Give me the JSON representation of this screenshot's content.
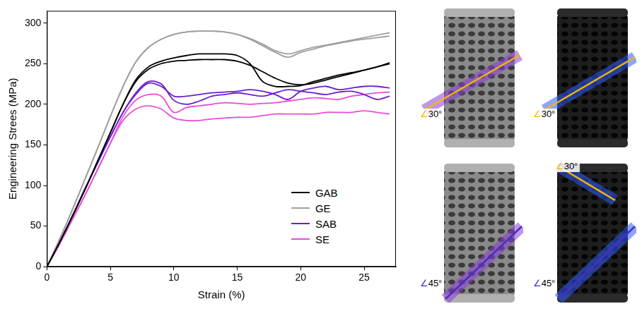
{
  "chart_data": {
    "type": "line",
    "x_label": "Strain (%)",
    "y_label": "Engineering Strees (MPa)",
    "x": [
      0,
      1,
      2,
      3,
      4,
      5,
      6,
      7,
      8,
      9,
      10,
      11,
      12,
      13,
      14,
      15,
      16,
      17,
      18,
      19,
      20,
      21,
      22,
      23,
      24,
      25,
      26,
      27
    ],
    "series": [
      {
        "name": "GAB",
        "color": "#000000",
        "values": [
          0,
          30,
          62,
          95,
          130,
          165,
          200,
          230,
          246,
          253,
          257,
          260,
          262,
          262,
          262,
          260,
          250,
          228,
          222,
          222,
          223,
          228,
          232,
          236,
          239,
          242,
          246,
          250
        ]
      },
      {
        "name": "GAB",
        "color": "#000000",
        "values": [
          0,
          30,
          62,
          95,
          130,
          165,
          200,
          228,
          243,
          250,
          253,
          254,
          255,
          255,
          255,
          253,
          248,
          240,
          232,
          226,
          224,
          226,
          230,
          234,
          238,
          242,
          246,
          251
        ]
      },
      {
        "name": "GE",
        "color": "#a0a0a0",
        "values": [
          0,
          34,
          70,
          108,
          146,
          185,
          222,
          252,
          270,
          280,
          286,
          289,
          290,
          290,
          289,
          286,
          281,
          274,
          266,
          262,
          266,
          270,
          273,
          276,
          279,
          282,
          285,
          288
        ]
      },
      {
        "name": "GE",
        "color": "#a0a0a0",
        "values": [
          0,
          34,
          70,
          108,
          146,
          185,
          222,
          252,
          270,
          280,
          286,
          289,
          290,
          290,
          289,
          286,
          280,
          272,
          264,
          258,
          264,
          268,
          272,
          275,
          278,
          280,
          282,
          284
        ]
      },
      {
        "name": "SAB",
        "color": "#6a1fd0",
        "values": [
          0,
          30,
          62,
          96,
          128,
          160,
          190,
          214,
          228,
          225,
          205,
          200,
          204,
          210,
          212,
          214,
          212,
          210,
          214,
          218,
          216,
          214,
          212,
          215,
          216,
          212,
          206,
          210
        ]
      },
      {
        "name": "SAB",
        "color": "#6a1fd0",
        "values": [
          0,
          30,
          62,
          96,
          128,
          160,
          190,
          212,
          226,
          222,
          210,
          210,
          212,
          214,
          215,
          216,
          218,
          216,
          212,
          206,
          216,
          220,
          222,
          218,
          220,
          222,
          222,
          220
        ]
      },
      {
        "name": "SE",
        "color": "#e84ddc",
        "values": [
          0,
          28,
          58,
          88,
          120,
          152,
          180,
          194,
          198,
          194,
          183,
          180,
          180,
          182,
          183,
          184,
          184,
          186,
          188,
          188,
          188,
          188,
          190,
          190,
          190,
          192,
          190,
          188
        ]
      },
      {
        "name": "SE",
        "color": "#e84ddc",
        "values": [
          0,
          28,
          58,
          88,
          120,
          152,
          185,
          205,
          212,
          210,
          190,
          196,
          198,
          200,
          202,
          201,
          200,
          201,
          202,
          204,
          206,
          208,
          207,
          206,
          210,
          212,
          214,
          215
        ]
      }
    ],
    "xlim": [
      0,
      27.5
    ],
    "xticks": [
      0,
      5,
      10,
      15,
      20,
      25
    ],
    "ylim": [
      0,
      315
    ],
    "yticks": [
      0,
      50,
      100,
      150,
      200,
      250,
      300
    ],
    "grid": false,
    "legend": "right"
  },
  "specimens": [
    {
      "labels": [
        {
          "text": "∠30°",
          "color": "#f2b705"
        }
      ]
    },
    {
      "labels": [
        {
          "text": "∠30°",
          "color": "#f2b705"
        }
      ]
    },
    {
      "labels": [
        {
          "text": "∠45°",
          "color": "#4a2fc0"
        }
      ]
    },
    {
      "labels": [
        {
          "text": "∠30°",
          "color": "#f2b705"
        },
        {
          "text": "∠45°",
          "color": "#4a2fc0"
        }
      ]
    }
  ]
}
